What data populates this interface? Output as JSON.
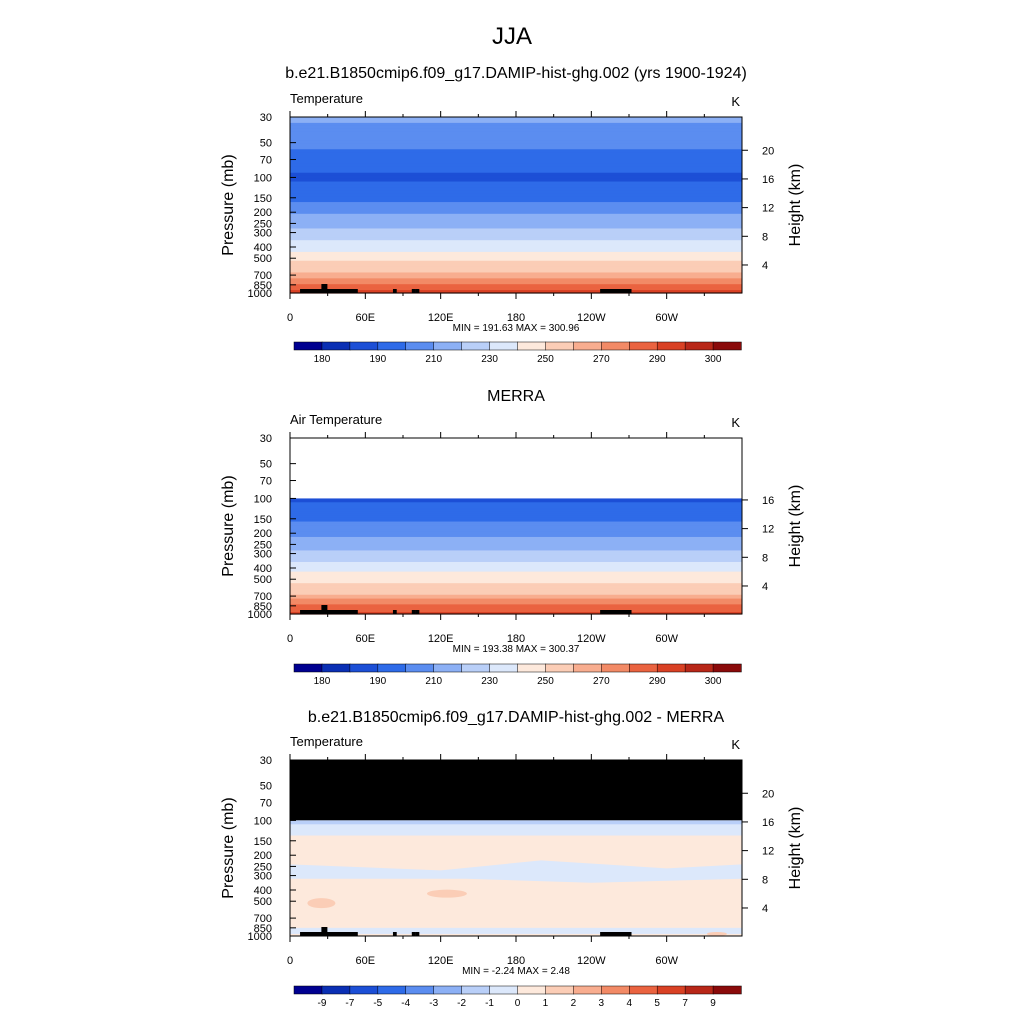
{
  "page": {
    "main_title": "JJA"
  },
  "colorbar": {
    "temp_colors": [
      "#000090",
      "#0a2fb4",
      "#1c4fd6",
      "#2e6be8",
      "#5b8df0",
      "#8cb0f5",
      "#b9cff8",
      "#dce8fb",
      "#fde9dc",
      "#fbcdb6",
      "#f8ad8f",
      "#f28a66",
      "#ea6340",
      "#d94124",
      "#b82718",
      "#8a0a0a"
    ],
    "temp_labels": [
      "180",
      "190",
      "210",
      "230",
      "250",
      "270",
      "290",
      "300"
    ],
    "diff_colors": [
      "#000090",
      "#0a2fb4",
      "#1c4fd6",
      "#2e6be8",
      "#5b8df0",
      "#8cb0f5",
      "#b9cff8",
      "#dce8fb",
      "#fde9dc",
      "#fbcdb6",
      "#f8ad8f",
      "#f28a66",
      "#ea6340",
      "#d94124",
      "#b82718",
      "#8a0a0a"
    ],
    "diff_labels": [
      "-9",
      "-7",
      "-5",
      "-4",
      "-3",
      "-2",
      "-1",
      "0",
      "1",
      "2",
      "3",
      "4",
      "5",
      "7",
      "9"
    ]
  },
  "chart_data": [
    {
      "type": "heatmap",
      "title": "b.e21.B1850cmip6.f09_g17.DAMIP-hist-ghg.002 (yrs 1900-1924)",
      "left_string": "Temperature",
      "right_string": "K",
      "xlabel": "",
      "ylabel": "Pressure (mb)",
      "ylabel_right": "Height (km)",
      "x_ticks": [
        "0",
        "60E",
        "120E",
        "180",
        "120W",
        "60W"
      ],
      "x_tick_lons": [
        0,
        60,
        120,
        180,
        240,
        300
      ],
      "xlim": [
        0,
        360
      ],
      "y_ticks": [
        "30",
        "50",
        "70",
        "100",
        "150",
        "200",
        "250",
        "300",
        "400",
        "500",
        "700",
        "850",
        "1000"
      ],
      "ylim": [
        1000,
        30
      ],
      "height_ticks": [
        "20",
        "16",
        "12",
        "8",
        "4"
      ],
      "height_values": [
        20,
        16,
        12,
        8,
        4
      ],
      "minmax": "MIN = 191.63  MAX = 300.96",
      "min": 191.63,
      "max": 300.96,
      "units": "K"
    },
    {
      "type": "heatmap",
      "title": "MERRA",
      "left_string": "Air Temperature",
      "right_string": "K",
      "xlabel": "",
      "ylabel": "Pressure (mb)",
      "ylabel_right": "Height (km)",
      "x_ticks": [
        "0",
        "60E",
        "120E",
        "180",
        "120W",
        "60W"
      ],
      "x_tick_lons": [
        0,
        60,
        120,
        180,
        240,
        300
      ],
      "xlim": [
        0,
        360
      ],
      "y_ticks": [
        "30",
        "50",
        "70",
        "100",
        "150",
        "200",
        "250",
        "300",
        "400",
        "500",
        "700",
        "850",
        "1000"
      ],
      "ylim": [
        1000,
        30
      ],
      "height_ticks": [
        "16",
        "12",
        "8",
        "4"
      ],
      "height_values": [
        16,
        12,
        8,
        4
      ],
      "minmax": "MIN = 193.38  MAX = 300.37",
      "min": 193.38,
      "max": 300.37,
      "units": "K",
      "data_top_pressure": 100
    },
    {
      "type": "heatmap",
      "title": "b.e21.B1850cmip6.f09_g17.DAMIP-hist-ghg.002 - MERRA",
      "left_string": "Temperature",
      "right_string": "K",
      "xlabel": "",
      "ylabel": "Pressure (mb)",
      "ylabel_right": "Height (km)",
      "x_ticks": [
        "0",
        "60E",
        "120E",
        "180",
        "120W",
        "60W"
      ],
      "x_tick_lons": [
        0,
        60,
        120,
        180,
        240,
        300
      ],
      "xlim": [
        0,
        360
      ],
      "y_ticks": [
        "30",
        "50",
        "70",
        "100",
        "150",
        "200",
        "250",
        "300",
        "400",
        "500",
        "700",
        "850",
        "1000"
      ],
      "ylim": [
        1000,
        30
      ],
      "height_ticks": [
        "20",
        "16",
        "12",
        "8",
        "4"
      ],
      "height_values": [
        20,
        16,
        12,
        8,
        4
      ],
      "minmax": "MIN = -2.24  MAX =  2.48",
      "min": -2.24,
      "max": 2.48,
      "units": "K",
      "missing_above_pressure": 100
    }
  ]
}
